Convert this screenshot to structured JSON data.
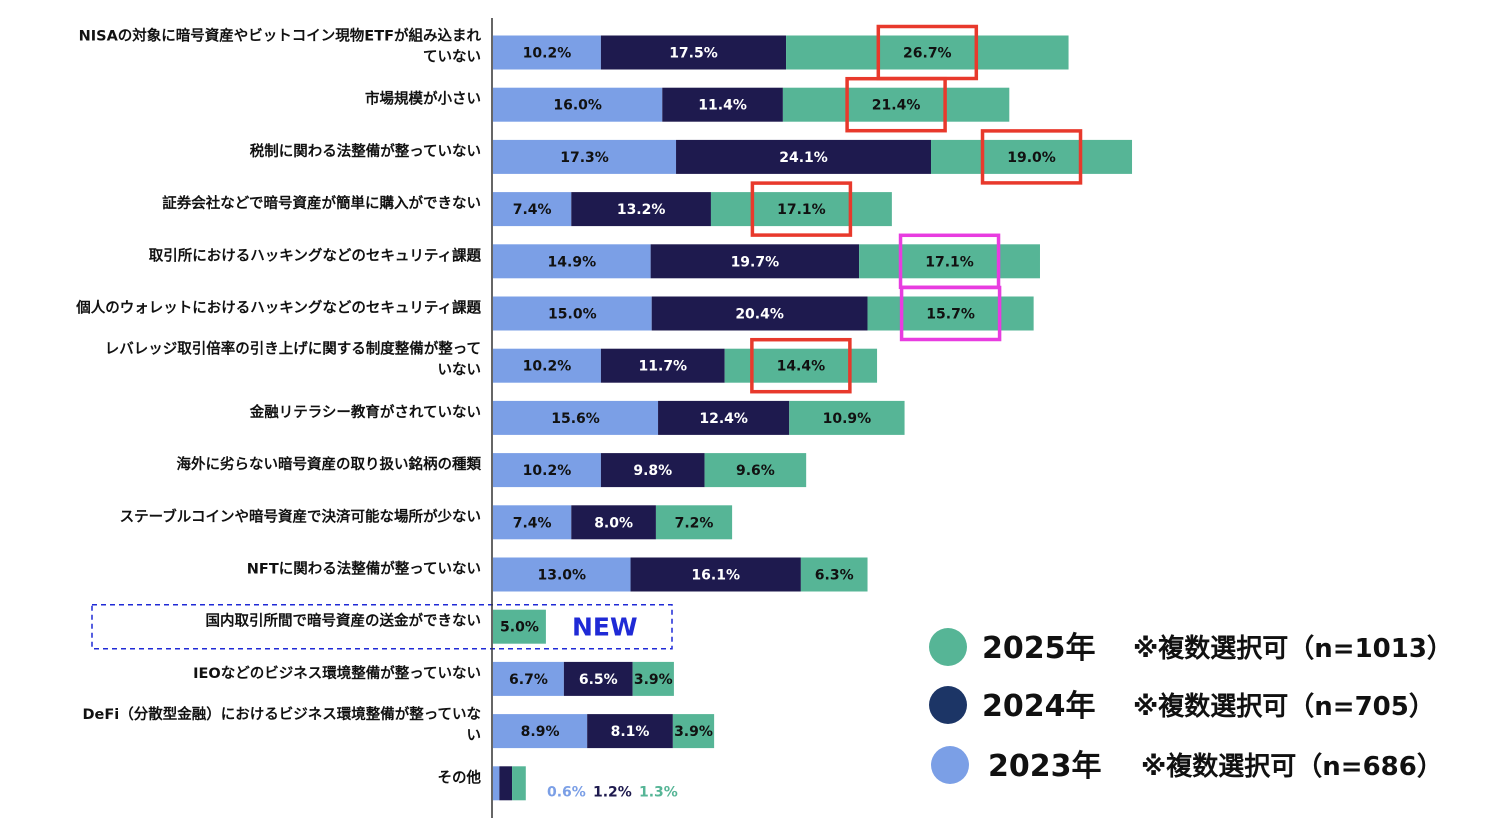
{
  "chart_data": {
    "type": "bar",
    "orientation": "horizontal",
    "stacked": true,
    "categories": [
      [
        "NISAの対象に暗号資産やビットコイン現物ETFが組み込まれ",
        "ていない"
      ],
      [
        "市場規模が小さい"
      ],
      [
        "税制に関わる法整備が整っていない"
      ],
      [
        "証券会社などで暗号資産が簡単に購入ができない"
      ],
      [
        "取引所におけるハッキングなどのセキュリティ課題"
      ],
      [
        "個人のウォレットにおけるハッキングなどのセキュリティ課題"
      ],
      [
        "レバレッジ取引倍率の引き上げに関する制度整備が整って",
        "いない"
      ],
      [
        "金融リテラシー教育がされていない"
      ],
      [
        "海外に劣らない暗号資産の取り扱い銘柄の種類"
      ],
      [
        "ステーブルコインや暗号資産で決済可能な場所が少ない"
      ],
      [
        "NFTに関わる法整備が整っていない"
      ],
      [
        "国内取引所間で暗号資産の送金ができない"
      ],
      [
        "IEOなどのビジネス環境整備が整っていない"
      ],
      [
        "DeFi（分散型金融）におけるビジネス環境整備が整っていな",
        "い"
      ],
      [
        "その他"
      ]
    ],
    "series": [
      {
        "name": "2023年",
        "color": "#7b9fe6",
        "label_color": "#111111",
        "values": [
          10.2,
          16.0,
          17.3,
          7.4,
          14.9,
          15.0,
          10.2,
          15.6,
          10.2,
          7.4,
          13.0,
          null,
          6.7,
          8.9,
          0.6
        ],
        "labels": [
          "10.2%",
          "16.0%",
          "17.3%",
          "7.4%",
          "14.9%",
          "15.0%",
          "10.2%",
          "15.6%",
          "10.2%",
          "7.4%",
          "13.0%",
          null,
          "6.7%",
          "8.9%",
          "0.6%"
        ]
      },
      {
        "name": "2024年",
        "color": "#1e1a4e",
        "label_color": "#ffffff",
        "values": [
          17.5,
          11.4,
          24.1,
          13.2,
          19.7,
          20.4,
          11.7,
          12.4,
          9.8,
          8.0,
          16.1,
          null,
          6.5,
          8.1,
          1.2
        ],
        "labels": [
          "17.5%",
          "11.4%",
          "24.1%",
          "13.2%",
          "19.7%",
          "20.4%",
          "11.7%",
          "12.4%",
          "9.8%",
          "8.0%",
          "16.1%",
          null,
          "6.5%",
          "8.1%",
          "1.2%"
        ]
      },
      {
        "name": "2025年",
        "color": "#56b596",
        "label_color": "#111111",
        "values": [
          26.7,
          21.4,
          19.0,
          17.1,
          17.1,
          15.7,
          14.4,
          10.9,
          9.6,
          7.2,
          6.3,
          5.0,
          3.9,
          3.9,
          1.3
        ],
        "labels": [
          "26.7%",
          "21.4%",
          "19.0%",
          "17.1%",
          "17.1%",
          "15.7%",
          "14.4%",
          "10.9%",
          "9.6%",
          "7.2%",
          "6.3%",
          "5.0%",
          "3.9%",
          "3.9%",
          "1.3%"
        ]
      }
    ],
    "highlights": [
      {
        "category_index": 0,
        "series": "2025年",
        "color": "#e8392c"
      },
      {
        "category_index": 1,
        "series": "2025年",
        "color": "#e8392c"
      },
      {
        "category_index": 2,
        "series": "2025年",
        "color": "#e8392c"
      },
      {
        "category_index": 3,
        "series": "2025年",
        "color": "#e8392c"
      },
      {
        "category_index": 4,
        "series": "2025年",
        "color": "#e83ce0"
      },
      {
        "category_index": 5,
        "series": "2025年",
        "color": "#e83ce0"
      },
      {
        "category_index": 6,
        "series": "2025年",
        "color": "#e8392c"
      }
    ],
    "new_item": {
      "category_index": 11,
      "label": "NEW",
      "color": "#1f2ad6"
    },
    "other_label_colors": [
      "#7b9fe6",
      "#1e1a4e",
      "#56b596"
    ],
    "legend": [
      {
        "year": "2025年",
        "note": "※複数選択可（n=1013）",
        "color": "#56b596"
      },
      {
        "year": "2024年",
        "note": "※複数選択可（n=705）",
        "color": "#1c3566"
      },
      {
        "year": "2023年",
        "note": "※複数選択可（n=686）",
        "color": "#7b9fe6"
      }
    ],
    "legend_placement": "bottom-right",
    "title": "",
    "xlabel": "",
    "ylabel": ""
  }
}
